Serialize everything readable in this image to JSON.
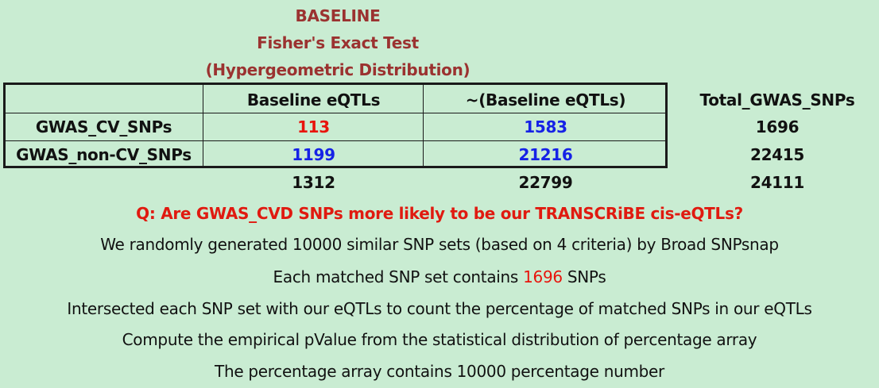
{
  "title": {
    "line1": "BASELINE",
    "line2": "Fisher's Exact Test",
    "line3": "(Hypergeometric Distribution)"
  },
  "table": {
    "headers": [
      "Baseline eQTLs",
      "~(Baseline eQTLs)",
      "Total_GWAS_SNPs"
    ],
    "rows": [
      {
        "label": "GWAS_CV_SNPs",
        "values": [
          "113",
          "1583",
          "1696"
        ]
      },
      {
        "label": "GWAS_non-CV_SNPs",
        "values": [
          "1199",
          "21216",
          "22415"
        ]
      }
    ],
    "totals": [
      "1312",
      "22799",
      "24111"
    ]
  },
  "question": "Q: Are GWAS_CVD SNPs more likely to be our TRANSCRiBE cis-eQTLs?",
  "notes": {
    "line1": "We randomly generated 10000 similar SNP sets (based on 4 criteria) by Broad SNPsnap",
    "line2_prefix": "Each matched SNP set contains ",
    "line2_value": "1696",
    "line2_suffix": " SNPs",
    "line3": "Intersected each SNP set with our eQTLs to count the percentage of matched SNPs in our eQTLs",
    "line4": "Compute the empirical pValue from the statistical distribution of percentage array",
    "line5": "The percentage array contains 10000 percentage number"
  },
  "colors": {
    "background": "#c9ecd2",
    "title": "#9b3230",
    "highlight_red": "#e8140c",
    "highlight_blue": "#1622e6"
  }
}
